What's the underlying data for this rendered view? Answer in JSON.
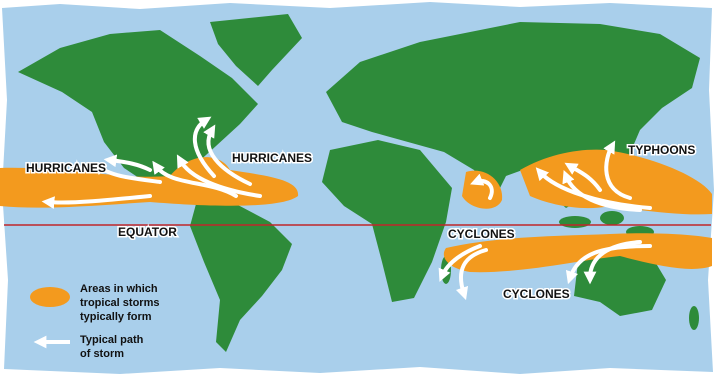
{
  "map": {
    "labels": [
      "HURRICANES",
      "HURRICANES",
      "EQUATOR",
      "CYCLONES",
      "CYCLONES",
      "TYPHOONS"
    ],
    "legend": [
      {
        "lines": [
          "Areas in which",
          "tropical storms",
          "typically form"
        ]
      },
      {
        "lines": [
          "Typical path",
          "of storm"
        ]
      }
    ]
  }
}
